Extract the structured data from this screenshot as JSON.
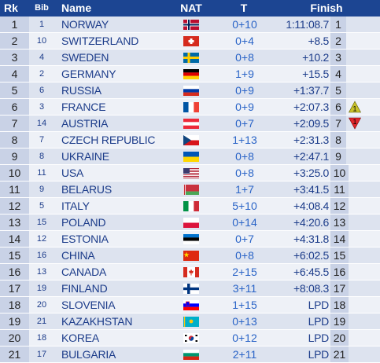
{
  "headers": {
    "rk": "Rk",
    "bib": "Bib",
    "name": "Name",
    "nat": "NAT",
    "t": "T",
    "finish": "Finish"
  },
  "rows": [
    {
      "rk": "1",
      "bib": "1",
      "name": "NORWAY",
      "t": "0+10",
      "finish": "1:11:08.7",
      "pos": "1",
      "flag": "nor"
    },
    {
      "rk": "2",
      "bib": "10",
      "name": "SWITZERLAND",
      "t": "0+4",
      "finish": "+8.5",
      "pos": "2",
      "flag": "sui"
    },
    {
      "rk": "3",
      "bib": "4",
      "name": "SWEDEN",
      "t": "0+8",
      "finish": "+10.2",
      "pos": "3",
      "flag": "swe"
    },
    {
      "rk": "4",
      "bib": "2",
      "name": "GERMANY",
      "t": "1+9",
      "finish": "+15.5",
      "pos": "4",
      "flag": "ger"
    },
    {
      "rk": "5",
      "bib": "6",
      "name": "RUSSIA",
      "t": "0+9",
      "finish": "+1:37.7",
      "pos": "5",
      "flag": "rus"
    },
    {
      "rk": "6",
      "bib": "3",
      "name": "FRANCE",
      "t": "0+9",
      "finish": "+2:07.3",
      "pos": "6",
      "flag": "fra",
      "change": "1",
      "dir": "up"
    },
    {
      "rk": "7",
      "bib": "14",
      "name": "AUSTRIA",
      "t": "0+7",
      "finish": "+2:09.5",
      "pos": "7",
      "flag": "aut",
      "change": "1",
      "dir": "down"
    },
    {
      "rk": "8",
      "bib": "7",
      "name": "CZECH REPUBLIC",
      "t": "1+13",
      "finish": "+2:31.3",
      "pos": "8",
      "flag": "cze"
    },
    {
      "rk": "9",
      "bib": "8",
      "name": "UKRAINE",
      "t": "0+8",
      "finish": "+2:47.1",
      "pos": "9",
      "flag": "ukr"
    },
    {
      "rk": "10",
      "bib": "11",
      "name": "USA",
      "t": "0+8",
      "finish": "+3:25.0",
      "pos": "10",
      "flag": "usa"
    },
    {
      "rk": "11",
      "bib": "9",
      "name": "BELARUS",
      "t": "1+7",
      "finish": "+3:41.5",
      "pos": "11",
      "flag": "blr"
    },
    {
      "rk": "12",
      "bib": "5",
      "name": "ITALY",
      "t": "5+10",
      "finish": "+4:08.4",
      "pos": "12",
      "flag": "ita"
    },
    {
      "rk": "13",
      "bib": "15",
      "name": "POLAND",
      "t": "0+14",
      "finish": "+4:20.6",
      "pos": "13",
      "flag": "pol"
    },
    {
      "rk": "14",
      "bib": "12",
      "name": "ESTONIA",
      "t": "0+7",
      "finish": "+4:31.8",
      "pos": "14",
      "flag": "est"
    },
    {
      "rk": "15",
      "bib": "16",
      "name": "CHINA",
      "t": "0+8",
      "finish": "+6:02.5",
      "pos": "15",
      "flag": "chn"
    },
    {
      "rk": "16",
      "bib": "13",
      "name": "CANADA",
      "t": "2+15",
      "finish": "+6:45.5",
      "pos": "16",
      "flag": "can"
    },
    {
      "rk": "17",
      "bib": "19",
      "name": "FINLAND",
      "t": "3+11",
      "finish": "+8:08.3",
      "pos": "17",
      "flag": "fin"
    },
    {
      "rk": "18",
      "bib": "20",
      "name": "SLOVENIA",
      "t": "1+15",
      "finish": "LPD",
      "pos": "18",
      "flag": "slo"
    },
    {
      "rk": "19",
      "bib": "21",
      "name": "KAZAKHSTAN",
      "t": "0+13",
      "finish": "LPD",
      "pos": "19",
      "flag": "kaz"
    },
    {
      "rk": "20",
      "bib": "18",
      "name": "KOREA",
      "t": "0+12",
      "finish": "LPD",
      "pos": "20",
      "flag": "kor"
    },
    {
      "rk": "21",
      "bib": "17",
      "name": "BULGARIA",
      "t": "2+11",
      "finish": "LPD",
      "pos": "21",
      "flag": "bul"
    }
  ],
  "colors": {
    "header": "#1c4592",
    "text": "#1c3c8a",
    "shooting": "#2a64c7",
    "up": "#c9c22a",
    "down": "#e0262b"
  }
}
